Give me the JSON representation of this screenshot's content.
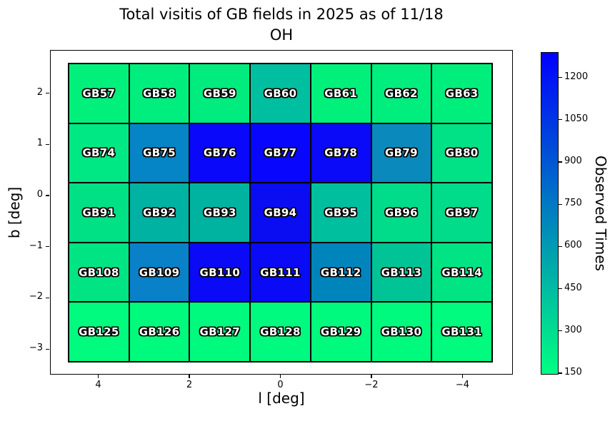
{
  "title": {
    "line1": "Total visitis of GB fields in 2025 as of 11/18",
    "line2": "OH"
  },
  "chart_data": {
    "type": "heatmap",
    "title": "Total visitis of GB fields in 2025 as of 11/18 OH",
    "xlabel": "l [deg]",
    "ylabel": "b [deg]",
    "x_ticks": [
      4,
      2,
      0,
      -2,
      -4
    ],
    "y_ticks": [
      2,
      1,
      0,
      -1,
      -2,
      -3
    ],
    "grid": {
      "rows": 5,
      "cols": 7
    },
    "colorbar": {
      "label": "Observed Times",
      "ticks": [
        150,
        300,
        450,
        600,
        750,
        900,
        1050,
        1200
      ],
      "vmin": 145,
      "vmax": 1290,
      "colormap": "winter_r",
      "bottom_color": "#00FF80",
      "top_color": "#0000FF"
    },
    "value_note": "values estimated from cell colors via colorbar",
    "cells": [
      {
        "label": "GB57",
        "value": 210,
        "color": "#00F07C"
      },
      {
        "label": "GB58",
        "value": 216,
        "color": "#00EE7D"
      },
      {
        "label": "GB59",
        "value": 222,
        "color": "#00EC7E"
      },
      {
        "label": "GB60",
        "value": 435,
        "color": "#00BFA0"
      },
      {
        "label": "GB61",
        "value": 210,
        "color": "#00F07C"
      },
      {
        "label": "GB62",
        "value": 216,
        "color": "#00EE7D"
      },
      {
        "label": "GB63",
        "value": 212,
        "color": "#00EF7C"
      },
      {
        "label": "GB74",
        "value": 250,
        "color": "#00E884"
      },
      {
        "label": "GB75",
        "value": 700,
        "color": "#0584C6"
      },
      {
        "label": "GB76",
        "value": 1270,
        "color": "#0A08FA"
      },
      {
        "label": "GB77",
        "value": 1280,
        "color": "#0806FC"
      },
      {
        "label": "GB78",
        "value": 1265,
        "color": "#0A0AF8"
      },
      {
        "label": "GB79",
        "value": 675,
        "color": "#0A8ABC"
      },
      {
        "label": "GB80",
        "value": 270,
        "color": "#00E285"
      },
      {
        "label": "GB91",
        "value": 275,
        "color": "#00E085"
      },
      {
        "label": "GB92",
        "value": 490,
        "color": "#00B2A2"
      },
      {
        "label": "GB93",
        "value": 487,
        "color": "#00B3A1"
      },
      {
        "label": "GB94",
        "value": 1235,
        "color": "#0A0DF2"
      },
      {
        "label": "GB95",
        "value": 435,
        "color": "#00BF9E"
      },
      {
        "label": "GB96",
        "value": 300,
        "color": "#00DC89"
      },
      {
        "label": "GB97",
        "value": 300,
        "color": "#00DC89"
      },
      {
        "label": "GB108",
        "value": 258,
        "color": "#00E483"
      },
      {
        "label": "GB109",
        "value": 715,
        "color": "#0881C8"
      },
      {
        "label": "GB110",
        "value": 1255,
        "color": "#0A0AF6"
      },
      {
        "label": "GB111",
        "value": 1255,
        "color": "#0A0AF6"
      },
      {
        "label": "GB112",
        "value": 655,
        "color": "#0084BC"
      },
      {
        "label": "GB113",
        "value": 410,
        "color": "#00C495"
      },
      {
        "label": "GB114",
        "value": 258,
        "color": "#00E483"
      },
      {
        "label": "GB125",
        "value": 162,
        "color": "#00FB7E"
      },
      {
        "label": "GB126",
        "value": 165,
        "color": "#00FA7E"
      },
      {
        "label": "GB127",
        "value": 165,
        "color": "#00FA7E"
      },
      {
        "label": "GB128",
        "value": 170,
        "color": "#00F97F"
      },
      {
        "label": "GB129",
        "value": 165,
        "color": "#00FA7E"
      },
      {
        "label": "GB130",
        "value": 165,
        "color": "#00FA7E"
      },
      {
        "label": "GB131",
        "value": 162,
        "color": "#00FB7E"
      }
    ]
  }
}
